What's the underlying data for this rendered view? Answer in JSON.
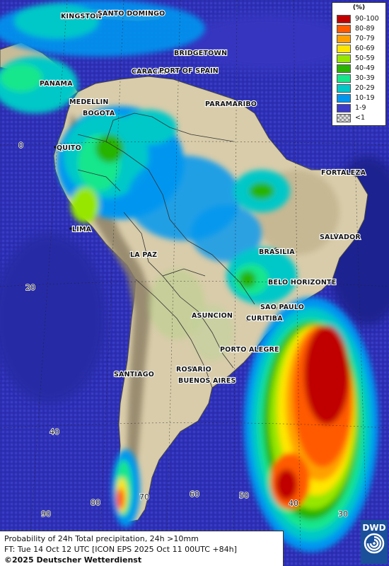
{
  "legend": {
    "unit": "(%)",
    "entries": [
      {
        "label": "90-100",
        "color": "#c00000"
      },
      {
        "label": "80-89",
        "color": "#ff5a00"
      },
      {
        "label": "70-79",
        "color": "#ffa000"
      },
      {
        "label": "60-69",
        "color": "#ffe600"
      },
      {
        "label": "50-59",
        "color": "#96e600"
      },
      {
        "label": "40-49",
        "color": "#28b400"
      },
      {
        "label": "30-39",
        "color": "#14e68c"
      },
      {
        "label": "20-29",
        "color": "#00c8c8"
      },
      {
        "label": "10-19",
        "color": "#0096f0"
      },
      {
        "label": "1-9",
        "color": "#3c3cc8"
      },
      {
        "label": "<1",
        "color": "checker"
      }
    ]
  },
  "cities": {
    "kingston": "KINGSTON",
    "santo_domingo": "SANTO DOMINGO",
    "bridgetown": "BRIDGETOWN",
    "caracas": "CARACAS",
    "port_of_spain": "PORT OF SPAIN",
    "panama": "PANAMA",
    "medellin": "MEDELLIN",
    "bogota": "BOGOTA",
    "paramaribo": "PARAMARIBO",
    "quito": "QUITO",
    "fortaleza": "FORTALEZA",
    "lima": "LIMA",
    "salvador": "SALVADOR",
    "la_paz": "LA PAZ",
    "brasilia": "BRASILIA",
    "belo_horizonte": "BELO HORIZONTE",
    "sao_paulo": "SAO PAULO",
    "asuncion": "ASUNCION",
    "curitiba": "CURITIBA",
    "porto_alegre": "PORTO ALEGRE",
    "santiago": "SANTIAGO",
    "rosario": "ROSARIO",
    "buenos_aires": "BUENOS AIRES"
  },
  "grid_labels": {
    "lat_0": "0",
    "lat_20": "20",
    "lat_40": "40",
    "lon_90": "90",
    "lon_80": "80",
    "lon_70": "70",
    "lon_60": "60",
    "lon_50": "50",
    "lon_40": "40",
    "lon_30": "30"
  },
  "info": {
    "title": "Probability of 24h Total precipitation, 24h >10mm",
    "forecast": "FT: Tue 14 Oct 12 UTC [ICON EPS 2025 Oct 11 00UTC +84h]",
    "copyright": "©2025 Deutscher Wetterdienst"
  },
  "logo": {
    "text": "DWD"
  },
  "colors": {
    "ocean_low": "#3c3cc8",
    "ocean_dark": "#1a2a9a",
    "land_low": "#d8ccaa",
    "land_high": "#a89a78"
  }
}
